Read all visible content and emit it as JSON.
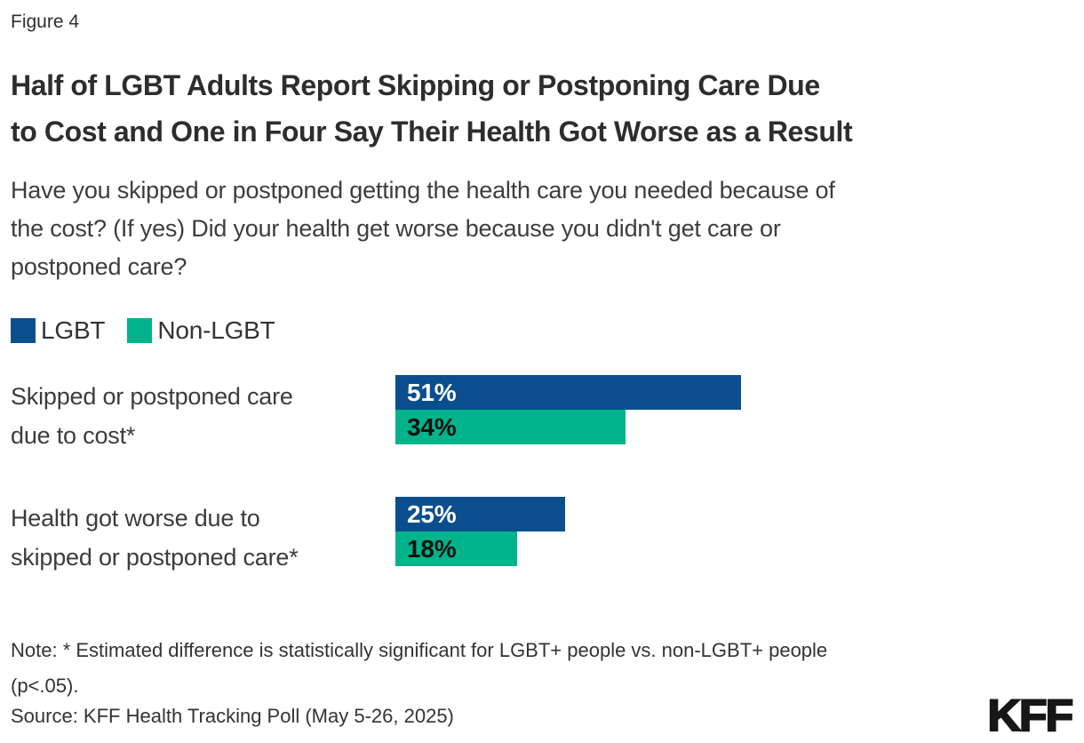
{
  "figure_label": "Figure 4",
  "title": "Half of LGBT Adults Report Skipping or Postponing Care Due to Cost and One in Four Say Their Health Got Worse as a Result",
  "title_lines": [
    "Half of LGBT Adults Report Skipping or Postponing Care Due",
    "to Cost and One in Four Say Their Health Got Worse as a Result"
  ],
  "subtitle": "Have you skipped or postponed getting the health care you needed because of the cost? (If yes) Did your health get worse because you didn't get care or postponed care?",
  "subtitle_lines": [
    "Have you skipped or postponed getting the health care you needed because of",
    "the cost? (If yes) Did your health get worse because you didn't get care or",
    "postponed care?"
  ],
  "legend": [
    {
      "label": "LGBT",
      "color": "#0a4e8e"
    },
    {
      "label": "Non-LGBT",
      "color": "#00b38a"
    }
  ],
  "categories_lines": [
    [
      "Skipped or postponed care",
      "due to cost*"
    ],
    [
      "Health got worse due to",
      "skipped or postponed care*"
    ]
  ],
  "chart_data": {
    "type": "bar",
    "orientation": "horizontal",
    "title": "Half of LGBT Adults Report Skipping or Postponing Care Due to Cost and One in Four Say Their Health Got Worse as a Result",
    "categories": [
      "Skipped or postponed care due to cost*",
      "Health got worse due to skipped or postponed care*"
    ],
    "series": [
      {
        "name": "LGBT",
        "color": "#0a4e8e",
        "values": [
          51,
          25
        ]
      },
      {
        "name": "Non-LGBT",
        "color": "#00b38a",
        "values": [
          34,
          18
        ]
      }
    ],
    "value_label_format": "percent",
    "value_labels": [
      [
        "51%",
        "25%"
      ],
      [
        "34%",
        "18%"
      ]
    ],
    "xlim": [
      0,
      100
    ],
    "grid": false,
    "legend_position": "top-left"
  },
  "note_lines": [
    "Note: * Estimated difference is statistically significant for LGBT+ people vs. non-LGBT+ people",
    "(p<.05)."
  ],
  "note": "Note: * Estimated difference is statistically significant for LGBT+ people vs. non-LGBT+ people (p<.05).",
  "source": "Source: KFF Health Tracking Poll (May 5-26, 2025)",
  "logo_text": "KFF"
}
